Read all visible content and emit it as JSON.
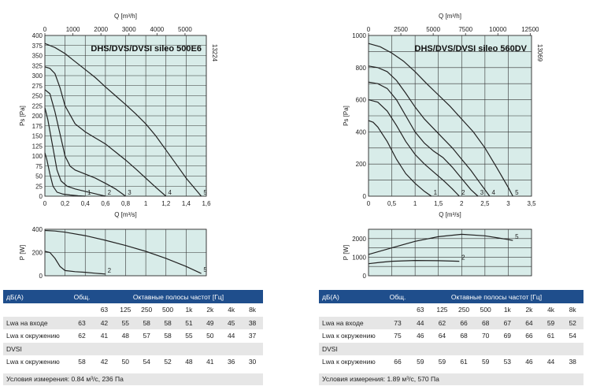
{
  "colors": {
    "plot_bg": "#d8ece9",
    "grid": "#333333",
    "curve": "#222222",
    "table_header": "#1f4e8c",
    "row_grey": "#e6e6e6"
  },
  "chart_data": [
    {
      "type": "line",
      "id": "left_ps",
      "title": "DHS/DVS/DVSI sileo 500E6",
      "side_code": "13224",
      "xlabel": "Q [m³/s]",
      "x2label": "Q [m³/h]",
      "ylabel": "Ps [Pa]",
      "xlim": [
        0,
        1.6
      ],
      "ylim": [
        0,
        400
      ],
      "xticks": [
        0,
        0.2,
        0.4,
        0.6,
        0.8,
        1,
        1.2,
        1.4,
        1.6
      ],
      "xtick_labels": [
        "0",
        "0,2",
        "0,4",
        "0,6",
        "0,8",
        "1",
        "1,2",
        "1,4",
        "1,6"
      ],
      "yticks": [
        0,
        25,
        50,
        75,
        100,
        125,
        150,
        175,
        200,
        225,
        250,
        275,
        300,
        325,
        350,
        375,
        400
      ],
      "ytick_labels": [
        "0",
        "25",
        "50",
        "75",
        "100",
        "125",
        "150",
        "175",
        "200",
        "225",
        "250",
        "275",
        "300",
        "325",
        "350",
        "375",
        "400"
      ],
      "x2ticks": [
        0,
        1000,
        2000,
        3000,
        4000,
        5000
      ],
      "x2tick_labels": [
        "0",
        "1000",
        "2000",
        "3000",
        "4000",
        "5000"
      ],
      "x2_factor": 3600,
      "grid": true,
      "series": [
        {
          "name": "1",
          "x": [
            0,
            0.02,
            0.05,
            0.08,
            0.12,
            0.18,
            0.25,
            0.33,
            0.4
          ],
          "y": [
            108,
            90,
            55,
            25,
            10,
            5,
            3,
            1,
            0
          ]
        },
        {
          "name": "2",
          "x": [
            0,
            0.03,
            0.08,
            0.12,
            0.16,
            0.22,
            0.3,
            0.4,
            0.5,
            0.6
          ],
          "y": [
            220,
            190,
            120,
            65,
            38,
            25,
            18,
            12,
            6,
            0
          ]
        },
        {
          "name": "3",
          "x": [
            0,
            0.05,
            0.1,
            0.15,
            0.2,
            0.25,
            0.3,
            0.4,
            0.5,
            0.6,
            0.7,
            0.8
          ],
          "y": [
            265,
            255,
            210,
            155,
            100,
            75,
            65,
            55,
            45,
            32,
            18,
            0
          ]
        },
        {
          "name": "4",
          "x": [
            0,
            0.05,
            0.1,
            0.15,
            0.2,
            0.3,
            0.4,
            0.5,
            0.6,
            0.7,
            0.8,
            0.9,
            1.0,
            1.1,
            1.2
          ],
          "y": [
            322,
            318,
            305,
            270,
            225,
            180,
            160,
            145,
            130,
            110,
            90,
            68,
            45,
            22,
            0
          ]
        },
        {
          "name": "5",
          "x": [
            0,
            0.1,
            0.2,
            0.3,
            0.4,
            0.5,
            0.6,
            0.7,
            0.8,
            0.9,
            1.0,
            1.1,
            1.2,
            1.3,
            1.4,
            1.55
          ],
          "y": [
            380,
            370,
            355,
            335,
            315,
            295,
            272,
            250,
            228,
            205,
            180,
            150,
            115,
            80,
            45,
            0
          ]
        }
      ]
    },
    {
      "type": "line",
      "id": "left_p",
      "xlim": [
        0,
        1.6
      ],
      "ylim": [
        0,
        400
      ],
      "ylabel": "P [W]",
      "yticks": [
        0,
        200,
        400
      ],
      "ytick_labels": [
        "0",
        "200",
        "400"
      ],
      "grid": true,
      "series": [
        {
          "name": "2",
          "x": [
            0,
            0.05,
            0.1,
            0.15,
            0.2,
            0.3,
            0.4,
            0.5,
            0.6
          ],
          "y": [
            210,
            200,
            150,
            80,
            45,
            35,
            30,
            22,
            15
          ]
        },
        {
          "name": "5",
          "x": [
            0,
            0.1,
            0.2,
            0.4,
            0.6,
            0.8,
            1.0,
            1.2,
            1.4,
            1.55
          ],
          "y": [
            390,
            385,
            375,
            345,
            305,
            260,
            210,
            150,
            80,
            20
          ]
        }
      ]
    },
    {
      "type": "line",
      "id": "right_ps",
      "title": "DHS/DVS/DVSI sileo 560DV",
      "side_code": "13069",
      "xlabel": "Q [m³/s]",
      "x2label": "Q [m³/h]",
      "ylabel": "Ps [Pa]",
      "xlim": [
        0,
        3.5
      ],
      "ylim": [
        0,
        1000
      ],
      "xticks": [
        0,
        0.5,
        1,
        1.5,
        2,
        2.5,
        3,
        3.5
      ],
      "xtick_labels": [
        "0",
        "0,5",
        "1",
        "1,5",
        "2",
        "2,5",
        "3",
        "3,5"
      ],
      "yticks": [
        0,
        100,
        200,
        300,
        400,
        500,
        600,
        700,
        800,
        900,
        1000
      ],
      "ytick_labels": [
        "0",
        "",
        "200",
        "",
        "400",
        "",
        "600",
        "",
        "800",
        "",
        "1000"
      ],
      "x2ticks": [
        0,
        2500,
        5000,
        7500,
        10000,
        12500
      ],
      "x2tick_labels": [
        "0",
        "2500",
        "5000",
        "7500",
        "10000",
        "12500"
      ],
      "x2_factor": 3600,
      "grid": true,
      "series": [
        {
          "name": "1",
          "x": [
            0,
            0.1,
            0.2,
            0.4,
            0.6,
            0.8,
            1.0,
            1.2,
            1.35
          ],
          "y": [
            470,
            460,
            430,
            340,
            230,
            140,
            80,
            30,
            0
          ]
        },
        {
          "name": "2",
          "x": [
            0,
            0.2,
            0.4,
            0.6,
            0.8,
            1.0,
            1.2,
            1.4,
            1.6,
            1.8,
            1.95
          ],
          "y": [
            600,
            585,
            530,
            440,
            340,
            260,
            200,
            150,
            100,
            45,
            0
          ]
        },
        {
          "name": "3",
          "x": [
            0,
            0.2,
            0.4,
            0.6,
            0.8,
            1.0,
            1.2,
            1.4,
            1.6,
            1.8,
            2.0,
            2.2,
            2.35
          ],
          "y": [
            710,
            700,
            670,
            600,
            500,
            400,
            330,
            280,
            240,
            180,
            110,
            40,
            0
          ]
        },
        {
          "name": "4",
          "x": [
            0,
            0.2,
            0.4,
            0.6,
            0.8,
            1.0,
            1.2,
            1.4,
            1.6,
            1.8,
            2.0,
            2.2,
            2.4,
            2.6
          ],
          "y": [
            810,
            800,
            775,
            720,
            640,
            555,
            480,
            420,
            360,
            300,
            230,
            160,
            80,
            0
          ]
        },
        {
          "name": "5",
          "x": [
            0,
            0.25,
            0.5,
            0.75,
            1.0,
            1.25,
            1.5,
            1.75,
            2.0,
            2.25,
            2.5,
            2.75,
            3.0,
            3.1
          ],
          "y": [
            950,
            930,
            890,
            840,
            775,
            700,
            630,
            560,
            480,
            400,
            300,
            180,
            55,
            0
          ]
        }
      ]
    },
    {
      "type": "line",
      "id": "right_p",
      "xlim": [
        0,
        3.5
      ],
      "ylim": [
        0,
        2500
      ],
      "ylabel": "P [W]",
      "yticks": [
        0,
        500,
        1000,
        1500,
        2000,
        2500
      ],
      "ytick_labels": [
        "0",
        "",
        "1000",
        "",
        "2000",
        ""
      ],
      "grid": true,
      "series": [
        {
          "name": "2",
          "x": [
            0,
            0.25,
            0.5,
            1.0,
            1.5,
            1.95
          ],
          "y": [
            650,
            720,
            780,
            820,
            810,
            780
          ]
        },
        {
          "name": "5",
          "x": [
            0,
            0.5,
            1.0,
            1.5,
            2.0,
            2.5,
            3.0,
            3.1
          ],
          "y": [
            1150,
            1500,
            1850,
            2100,
            2230,
            2150,
            1950,
            1900
          ]
        }
      ]
    }
  ],
  "tables": [
    {
      "header_label": "дБ(А)",
      "header_total": "Общ.",
      "header_bands": "Октавные полосы частот [Гц]",
      "freqs": [
        "63",
        "125",
        "250",
        "500",
        "1k",
        "2k",
        "4k",
        "8k"
      ],
      "rows": [
        {
          "label": "Lwa на входе",
          "total": "63",
          "vals": [
            "42",
            "55",
            "58",
            "58",
            "51",
            "49",
            "45",
            "38"
          ]
        },
        {
          "label": "Lwa к окружению",
          "total": "62",
          "vals": [
            "41",
            "48",
            "57",
            "58",
            "55",
            "50",
            "44",
            "37"
          ]
        },
        {
          "label": "DVSI",
          "total": "",
          "vals": [
            "",
            "",
            "",
            "",
            "",
            "",
            "",
            ""
          ]
        },
        {
          "label": "Lwa к окружению",
          "total": "58",
          "vals": [
            "42",
            "50",
            "54",
            "52",
            "48",
            "41",
            "36",
            "30"
          ]
        }
      ],
      "footer": "Условия измерения: 0.84 м³/с, 236 Па"
    },
    {
      "header_label": "дБ(А)",
      "header_total": "Общ.",
      "header_bands": "Октавные полосы частот [Гц]",
      "freqs": [
        "63",
        "125",
        "250",
        "500",
        "1k",
        "2k",
        "4k",
        "8k"
      ],
      "rows": [
        {
          "label": "Lwa на входе",
          "total": "73",
          "vals": [
            "44",
            "62",
            "66",
            "68",
            "67",
            "64",
            "59",
            "52"
          ]
        },
        {
          "label": "Lwa к окружению",
          "total": "75",
          "vals": [
            "46",
            "64",
            "68",
            "70",
            "69",
            "66",
            "61",
            "54"
          ]
        },
        {
          "label": "DVSI",
          "total": "",
          "vals": [
            "",
            "",
            "",
            "",
            "",
            "",
            "",
            ""
          ]
        },
        {
          "label": "Lwa к окружению",
          "total": "66",
          "vals": [
            "59",
            "59",
            "61",
            "59",
            "53",
            "46",
            "44",
            "38"
          ]
        }
      ],
      "footer": "Условия измерения: 1.89 м³/с, 570 Па"
    }
  ]
}
